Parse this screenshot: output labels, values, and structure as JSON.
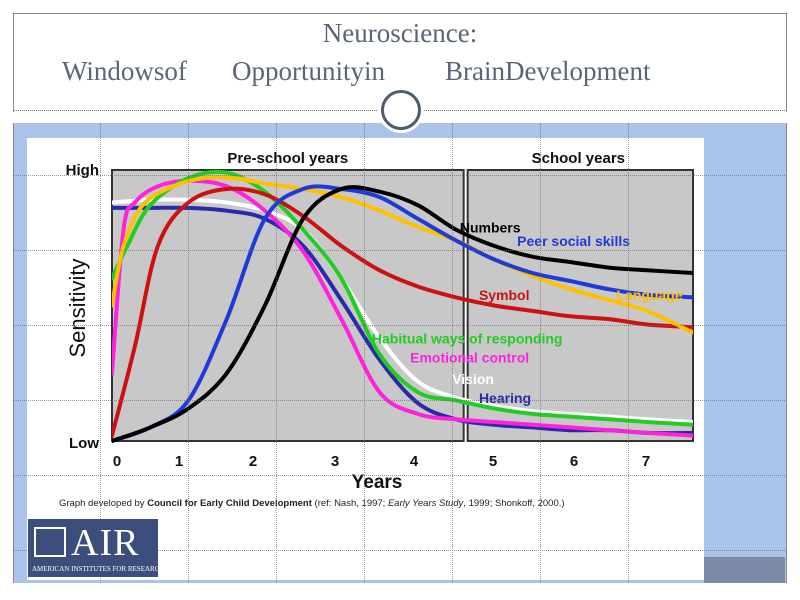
{
  "slide": {
    "title_line1": "Neuroscience:",
    "title_words": [
      "Windowsof",
      "Opportunityin",
      "BrainDevelopment"
    ],
    "logo_text": "AIR",
    "logo_subtext": "AMERICAN INSTITUTES FOR RESEARCH",
    "colors": {
      "band": "#a9c3ea",
      "title": "#5a6577",
      "logo": "#3c4f7c"
    }
  },
  "chart_data": {
    "type": "line",
    "section_labels": [
      "Pre-school years",
      "School years"
    ],
    "xlabel": "Years",
    "ylabel": "Sensitivity",
    "y_tick_labels": [
      "High",
      "Low"
    ],
    "x_ticks": [
      "0",
      "1",
      "2",
      "3",
      "4",
      "5",
      "6",
      "7"
    ],
    "xlim": [
      0,
      7.6
    ],
    "ylim": [
      0,
      1
    ],
    "caption": {
      "prefix": "Graph developed by ",
      "org": "Council for Early Child Development",
      "rest1": " (ref: Nash, 1997; ",
      "italic": "Early Years Study",
      "rest2": ", 1999; Shonkoff, 2000.)"
    },
    "series": [
      {
        "name": "Numbers",
        "color": "#000000",
        "label_at": [
          4.55,
          0.77
        ],
        "x": [
          0,
          0.5,
          1,
          1.5,
          2,
          2.5,
          3,
          3.5,
          4,
          4.5,
          5,
          5.5,
          6,
          6.5,
          7,
          7.6
        ],
        "y": [
          0.0,
          0.05,
          0.12,
          0.25,
          0.5,
          0.82,
          0.93,
          0.92,
          0.87,
          0.78,
          0.72,
          0.68,
          0.66,
          0.64,
          0.63,
          0.62
        ]
      },
      {
        "name": "Peer social skills",
        "color": "#1f3bd6",
        "label_at": [
          5.3,
          0.72
        ],
        "x": [
          0,
          0.5,
          1,
          1.5,
          2,
          2.5,
          3,
          3.5,
          4,
          4.5,
          5,
          5.5,
          6,
          6.5,
          7,
          7.6
        ],
        "y": [
          0.0,
          0.05,
          0.15,
          0.45,
          0.82,
          0.93,
          0.93,
          0.9,
          0.82,
          0.74,
          0.67,
          0.62,
          0.59,
          0.56,
          0.54,
          0.53
        ]
      },
      {
        "name": "Language",
        "color": "#ffc000",
        "label_at": [
          6.6,
          0.52
        ],
        "x": [
          0,
          0.15,
          0.4,
          0.8,
          1.2,
          1.6,
          2,
          2.5,
          3,
          3.5,
          4,
          4.5,
          5,
          5.5,
          6,
          6.5,
          7,
          7.6
        ],
        "y": [
          0.5,
          0.72,
          0.87,
          0.94,
          0.97,
          0.97,
          0.95,
          0.93,
          0.9,
          0.85,
          0.79,
          0.74,
          0.67,
          0.61,
          0.56,
          0.52,
          0.48,
          0.4
        ]
      },
      {
        "name": "Symbol",
        "color": "#cc1111",
        "label_at": [
          4.8,
          0.52
        ],
        "x": [
          0,
          0.3,
          0.6,
          1,
          1.5,
          2,
          2.5,
          3,
          3.5,
          4,
          4.5,
          5,
          5.5,
          6,
          6.5,
          7,
          7.6
        ],
        "y": [
          0.02,
          0.35,
          0.72,
          0.88,
          0.93,
          0.91,
          0.83,
          0.72,
          0.63,
          0.57,
          0.53,
          0.5,
          0.48,
          0.46,
          0.45,
          0.43,
          0.42
        ]
      },
      {
        "name": "Habitual ways of responding",
        "color": "#22cc22",
        "label_at": [
          3.4,
          0.36
        ],
        "x": [
          0,
          0.2,
          0.5,
          1,
          1.5,
          2,
          2.5,
          3,
          3.5,
          4,
          4.5,
          5,
          5.5,
          6,
          6.5,
          7,
          7.6
        ],
        "y": [
          0.6,
          0.72,
          0.87,
          0.97,
          0.99,
          0.92,
          0.78,
          0.6,
          0.32,
          0.18,
          0.15,
          0.12,
          0.1,
          0.09,
          0.08,
          0.07,
          0.06
        ]
      },
      {
        "name": "Emotional control",
        "color": "#ff22dd",
        "label_at": [
          3.9,
          0.29
        ],
        "x": [
          0,
          0.15,
          0.3,
          0.6,
          1,
          1.5,
          2,
          2.5,
          3,
          3.5,
          4,
          4.5,
          5,
          5.5,
          6,
          6.5,
          7,
          7.6
        ],
        "y": [
          0.25,
          0.78,
          0.88,
          0.94,
          0.96,
          0.94,
          0.85,
          0.7,
          0.45,
          0.18,
          0.1,
          0.08,
          0.07,
          0.06,
          0.05,
          0.04,
          0.03,
          0.02
        ]
      },
      {
        "name": "Vision",
        "color": "#ffffff",
        "label_at": [
          4.45,
          0.21
        ],
        "x": [
          0,
          0.5,
          1,
          1.5,
          2,
          2.5,
          3,
          3.5,
          4,
          4.5,
          5,
          5.5,
          6,
          6.5,
          7,
          7.6
        ],
        "y": [
          0.88,
          0.89,
          0.89,
          0.88,
          0.85,
          0.78,
          0.6,
          0.38,
          0.22,
          0.16,
          0.13,
          0.11,
          0.1,
          0.09,
          0.08,
          0.07
        ]
      },
      {
        "name": "Hearing",
        "color": "#2a2aa8",
        "label_at": [
          4.8,
          0.14
        ],
        "x": [
          0,
          0.5,
          1,
          1.5,
          2,
          2.5,
          3,
          3.5,
          4,
          4.5,
          5,
          5.5,
          6,
          6.5,
          7,
          7.6
        ],
        "y": [
          0.86,
          0.86,
          0.86,
          0.85,
          0.82,
          0.72,
          0.52,
          0.3,
          0.14,
          0.08,
          0.06,
          0.05,
          0.04,
          0.04,
          0.03,
          0.03
        ]
      }
    ]
  }
}
